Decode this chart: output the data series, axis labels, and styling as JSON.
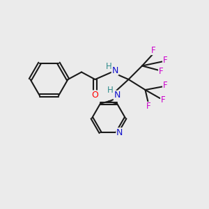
{
  "bg_color": "#ebebeb",
  "bond_color": "#1a1a1a",
  "atom_colors": {
    "O": "#ff0000",
    "N": "#1111cc",
    "H": "#2e8b8b",
    "F": "#cc00cc",
    "C": "#1a1a1a"
  },
  "bond_width": 1.5,
  "title": ""
}
